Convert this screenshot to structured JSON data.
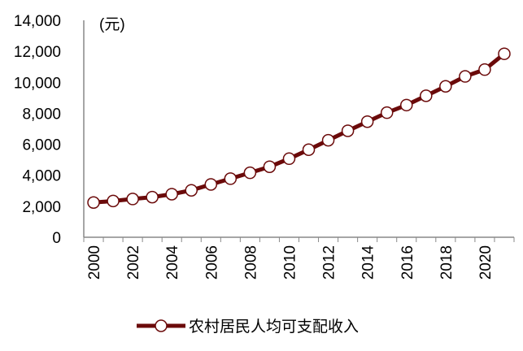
{
  "chart_data": {
    "type": "line",
    "title": "",
    "unit_label": "(元)",
    "xlabel": "",
    "ylabel": "",
    "x": [
      2000,
      2001,
      2002,
      2003,
      2004,
      2005,
      2006,
      2007,
      2008,
      2009,
      2010,
      2011,
      2012,
      2013,
      2014,
      2015,
      2016,
      2017,
      2018,
      2019,
      2020,
      2021
    ],
    "x_tick_labels": [
      "2000",
      "2002",
      "2004",
      "2006",
      "2008",
      "2010",
      "2012",
      "2014",
      "2016",
      "2018",
      "2020"
    ],
    "y_tick_labels": [
      "0",
      "2,000",
      "4,000",
      "6,000",
      "8,000",
      "10,000",
      "12,000",
      "14,000"
    ],
    "ylim": [
      0,
      14000
    ],
    "grid": false,
    "legend_position": "bottom",
    "series": [
      {
        "name": "农村居民人均可支配收入",
        "color": "#6b0a0a",
        "marker": "open-circle",
        "values": [
          2240,
          2340,
          2470,
          2590,
          2780,
          3030,
          3410,
          3780,
          4160,
          4550,
          5070,
          5650,
          6260,
          6870,
          7460,
          8040,
          8530,
          9130,
          9740,
          10380,
          10820,
          11840
        ]
      }
    ]
  }
}
